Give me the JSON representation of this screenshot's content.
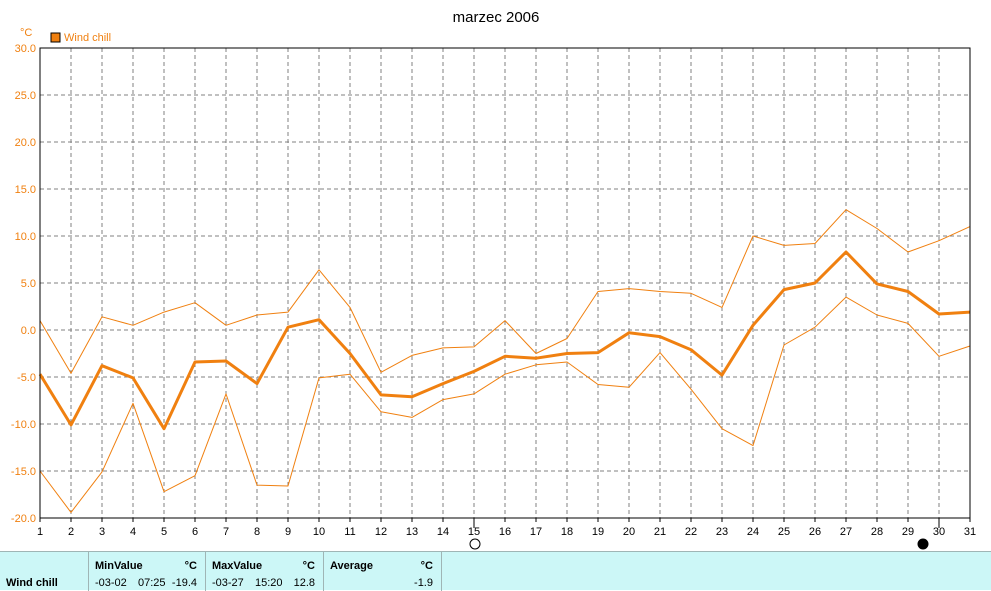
{
  "chart_data": {
    "type": "line",
    "title": "marzec 2006",
    "y_unit": "°C",
    "legend": [
      "Wind chill"
    ],
    "legend_position": "top-left",
    "grid": true,
    "ylim": [
      -20,
      30
    ],
    "y_ticks": [
      "30.0",
      "25.0",
      "20.0",
      "15.0",
      "10.0",
      "5.0",
      "0.0",
      "-5.0",
      "-10.0",
      "-15.0",
      "-20.0"
    ],
    "x": [
      1,
      2,
      3,
      4,
      5,
      6,
      7,
      8,
      9,
      10,
      11,
      12,
      13,
      14,
      15,
      16,
      17,
      18,
      19,
      20,
      21,
      22,
      23,
      24,
      25,
      26,
      27,
      28,
      29,
      30,
      31
    ],
    "x_ticks": [
      "1",
      "2",
      "3",
      "4",
      "5",
      "6",
      "7",
      "8",
      "9",
      "10",
      "11",
      "12",
      "13",
      "14",
      "15",
      "16",
      "17",
      "18",
      "19",
      "20",
      "21",
      "22",
      "23",
      "24",
      "25",
      "26",
      "27",
      "28",
      "29",
      "30",
      "31"
    ],
    "colors": {
      "line": "#f08010",
      "axis": "#000000",
      "grid": "#808080"
    },
    "series": [
      {
        "name": "Wind chill",
        "role": "average",
        "values": [
          -4.7,
          -10.1,
          -3.8,
          -5.1,
          -10.5,
          -3.4,
          -3.3,
          -5.7,
          0.3,
          1.1,
          -2.5,
          -6.9,
          -7.1,
          -5.7,
          -4.4,
          -2.8,
          -3.0,
          -2.5,
          -2.4,
          -0.3,
          -0.7,
          -2.1,
          -4.8,
          0.5,
          4.3,
          5.0,
          8.3,
          4.9,
          4.1,
          1.7,
          1.9
        ]
      },
      {
        "name": "",
        "role": "max",
        "values": [
          1.0,
          -4.6,
          1.4,
          0.5,
          1.9,
          2.9,
          0.5,
          1.6,
          1.9,
          6.4,
          2.4,
          -4.5,
          -2.7,
          -1.9,
          -1.8,
          1.0,
          -2.5,
          -0.9,
          4.1,
          4.4,
          4.1,
          3.9,
          2.4,
          10.0,
          9.0,
          9.2,
          12.8,
          10.8,
          8.3,
          9.5,
          11.0
        ]
      },
      {
        "name": "",
        "role": "min",
        "values": [
          -15.0,
          -19.4,
          -15.1,
          -7.8,
          -17.2,
          -15.5,
          -6.8,
          -16.5,
          -16.6,
          -5.1,
          -4.7,
          -8.7,
          -9.3,
          -7.4,
          -6.8,
          -4.7,
          -3.7,
          -3.4,
          -5.8,
          -6.1,
          -2.4,
          -6.3,
          -10.5,
          -12.3,
          -1.6,
          0.3,
          3.5,
          1.6,
          0.7,
          -2.8,
          -1.7
        ]
      }
    ]
  },
  "stats": {
    "series_label": "Wind chill",
    "min": {
      "header": "MinValue",
      "unit": "°C",
      "date": "-03-02",
      "time": "07:25",
      "value": "-19.4"
    },
    "max": {
      "header": "MaxValue",
      "unit": "°C",
      "date": "-03-27",
      "time": "15:20",
      "value": "12.8"
    },
    "avg": {
      "header": "Average",
      "unit": "°C",
      "value": "-1.9"
    }
  }
}
